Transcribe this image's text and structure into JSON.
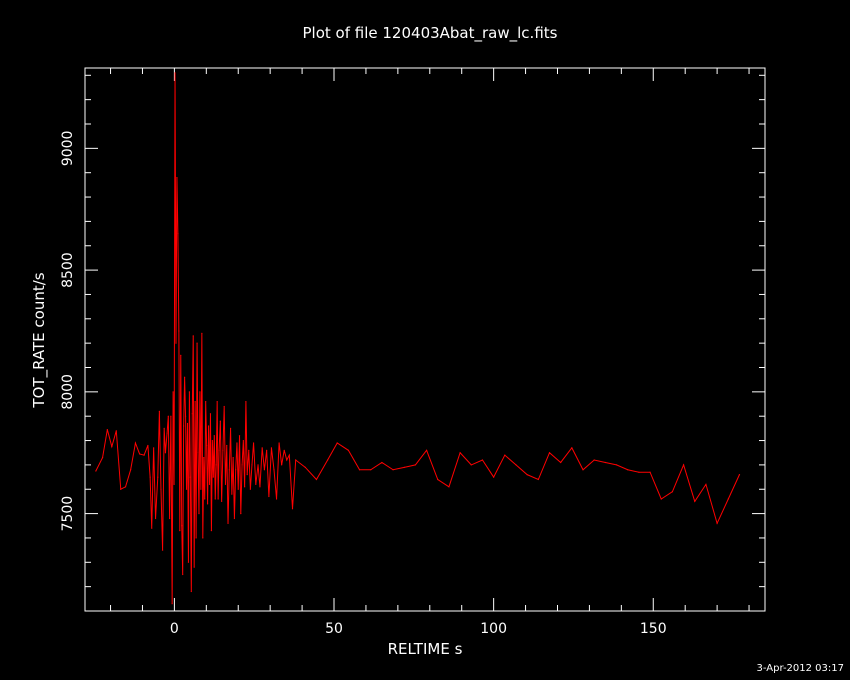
{
  "chart_data": {
    "type": "line",
    "title": "Plot of file 120403Abat_raw_lc.fits",
    "xlabel": "RELTIME  s",
    "ylabel": "TOT_RATE  count/s",
    "xlim": [
      -28,
      185
    ],
    "ylim": [
      7100,
      9330
    ],
    "x_ticks": [
      0,
      50,
      100,
      150
    ],
    "x_tick_labels": [
      "0",
      "50",
      "100",
      "150"
    ],
    "y_ticks": [
      7500,
      8000,
      8500,
      9000
    ],
    "y_tick_labels": [
      "7500",
      "8000",
      "8500",
      "9000"
    ],
    "grid": false,
    "legend": "none",
    "colors": {
      "background": "#000000",
      "axes": "#ffffff",
      "line": "#ff0000",
      "text": "#ffffff"
    },
    "series": [
      {
        "values": [
          [
            -24.6,
            7675
          ],
          [
            -22.5,
            7730
          ],
          [
            -21.0,
            7845
          ],
          [
            -19.6,
            7775
          ],
          [
            -18.2,
            7840
          ],
          [
            -16.8,
            7600
          ],
          [
            -15.3,
            7610
          ],
          [
            -13.7,
            7680
          ],
          [
            -12.2,
            7790
          ],
          [
            -10.9,
            7745
          ],
          [
            -9.5,
            7740
          ],
          [
            -8.3,
            7780
          ],
          [
            -7.6,
            7650
          ],
          [
            -7.1,
            7440
          ],
          [
            -6.5,
            7770
          ],
          [
            -5.9,
            7480
          ],
          [
            -5.2,
            7650
          ],
          [
            -4.7,
            7920
          ],
          [
            -4.2,
            7600
          ],
          [
            -3.7,
            7350
          ],
          [
            -3.2,
            7850
          ],
          [
            -2.8,
            7750
          ],
          [
            -2.3,
            7830
          ],
          [
            -1.9,
            7900
          ],
          [
            -1.5,
            7480
          ],
          [
            -1.1,
            7900
          ],
          [
            -0.7,
            7130
          ],
          [
            -0.4,
            8000
          ],
          [
            -0.1,
            7620
          ],
          [
            0.2,
            9310
          ],
          [
            0.5,
            8200
          ],
          [
            0.8,
            8880
          ],
          [
            1.1,
            8650
          ],
          [
            1.4,
            8250
          ],
          [
            1.7,
            7430
          ],
          [
            2.0,
            8150
          ],
          [
            2.3,
            7450
          ],
          [
            2.6,
            7250
          ],
          [
            2.9,
            7860
          ],
          [
            3.2,
            8060
          ],
          [
            3.5,
            7900
          ],
          [
            3.8,
            7600
          ],
          [
            4.1,
            7870
          ],
          [
            4.4,
            7300
          ],
          [
            4.7,
            8000
          ],
          [
            5.0,
            7650
          ],
          [
            5.3,
            7180
          ],
          [
            5.6,
            7910
          ],
          [
            5.9,
            8230
          ],
          [
            6.2,
            7280
          ],
          [
            6.5,
            7960
          ],
          [
            6.8,
            7400
          ],
          [
            7.1,
            8200
          ],
          [
            7.4,
            7750
          ],
          [
            7.7,
            7500
          ],
          [
            8.0,
            8000
          ],
          [
            8.3,
            7600
          ],
          [
            8.6,
            8240
          ],
          [
            8.9,
            7400
          ],
          [
            9.2,
            7730
          ],
          [
            9.5,
            7560
          ],
          [
            9.8,
            7960
          ],
          [
            10.1,
            7780
          ],
          [
            10.4,
            7540
          ],
          [
            10.7,
            7860
          ],
          [
            11.0,
            7620
          ],
          [
            11.3,
            7910
          ],
          [
            11.6,
            7430
          ],
          [
            11.9,
            7800
          ],
          [
            12.2,
            7650
          ],
          [
            12.5,
            7820
          ],
          [
            12.8,
            7560
          ],
          [
            13.1,
            7700
          ],
          [
            13.4,
            7960
          ],
          [
            13.7,
            7560
          ],
          [
            14.0,
            7760
          ],
          [
            14.4,
            7880
          ],
          [
            14.8,
            7550
          ],
          [
            15.2,
            7760
          ],
          [
            15.6,
            7940
          ],
          [
            16.0,
            7620
          ],
          [
            16.4,
            7780
          ],
          [
            16.8,
            7460
          ],
          [
            17.2,
            7680
          ],
          [
            17.6,
            7850
          ],
          [
            18.0,
            7580
          ],
          [
            18.4,
            7730
          ],
          [
            18.8,
            7480
          ],
          [
            19.2,
            7680
          ],
          [
            19.6,
            7790
          ],
          [
            20.0,
            7600
          ],
          [
            20.4,
            7820
          ],
          [
            20.8,
            7500
          ],
          [
            21.2,
            7700
          ],
          [
            21.6,
            7800
          ],
          [
            22.0,
            7610
          ],
          [
            22.4,
            7960
          ],
          [
            22.8,
            7660
          ],
          [
            23.3,
            7760
          ],
          [
            23.8,
            7600
          ],
          [
            24.3,
            7700
          ],
          [
            24.8,
            7790
          ],
          [
            25.5,
            7620
          ],
          [
            26.2,
            7700
          ],
          [
            26.8,
            7610
          ],
          [
            27.5,
            7770
          ],
          [
            28.2,
            7680
          ],
          [
            28.9,
            7760
          ],
          [
            29.6,
            7570
          ],
          [
            30.4,
            7770
          ],
          [
            31.2,
            7680
          ],
          [
            32.0,
            7560
          ],
          [
            32.8,
            7790
          ],
          [
            33.6,
            7700
          ],
          [
            34.4,
            7760
          ],
          [
            35.2,
            7720
          ],
          [
            36.0,
            7740
          ],
          [
            37.0,
            7520
          ],
          [
            38.0,
            7720
          ],
          [
            41.0,
            7690
          ],
          [
            44.5,
            7640
          ],
          [
            48.0,
            7720
          ],
          [
            51.0,
            7790
          ],
          [
            54.5,
            7760
          ],
          [
            58.0,
            7680
          ],
          [
            61.5,
            7680
          ],
          [
            65.0,
            7710
          ],
          [
            68.5,
            7680
          ],
          [
            72.0,
            7690
          ],
          [
            75.5,
            7700
          ],
          [
            79.0,
            7760
          ],
          [
            82.5,
            7640
          ],
          [
            86.0,
            7610
          ],
          [
            89.5,
            7750
          ],
          [
            93.0,
            7700
          ],
          [
            96.5,
            7720
          ],
          [
            100.0,
            7650
          ],
          [
            103.5,
            7740
          ],
          [
            107.0,
            7700
          ],
          [
            110.5,
            7660
          ],
          [
            114.0,
            7640
          ],
          [
            117.5,
            7750
          ],
          [
            121.0,
            7710
          ],
          [
            124.5,
            7770
          ],
          [
            128.0,
            7680
          ],
          [
            131.5,
            7720
          ],
          [
            135.0,
            7710
          ],
          [
            138.5,
            7700
          ],
          [
            142.0,
            7680
          ],
          [
            145.5,
            7670
          ],
          [
            149.0,
            7670
          ],
          [
            152.5,
            7560
          ],
          [
            156.0,
            7590
          ],
          [
            159.5,
            7700
          ],
          [
            163.0,
            7550
          ],
          [
            166.5,
            7620
          ],
          [
            170.0,
            7460
          ],
          [
            173.5,
            7560
          ],
          [
            177.0,
            7660
          ]
        ]
      }
    ]
  },
  "footer": {
    "timestamp": "3-Apr-2012 03:17"
  }
}
